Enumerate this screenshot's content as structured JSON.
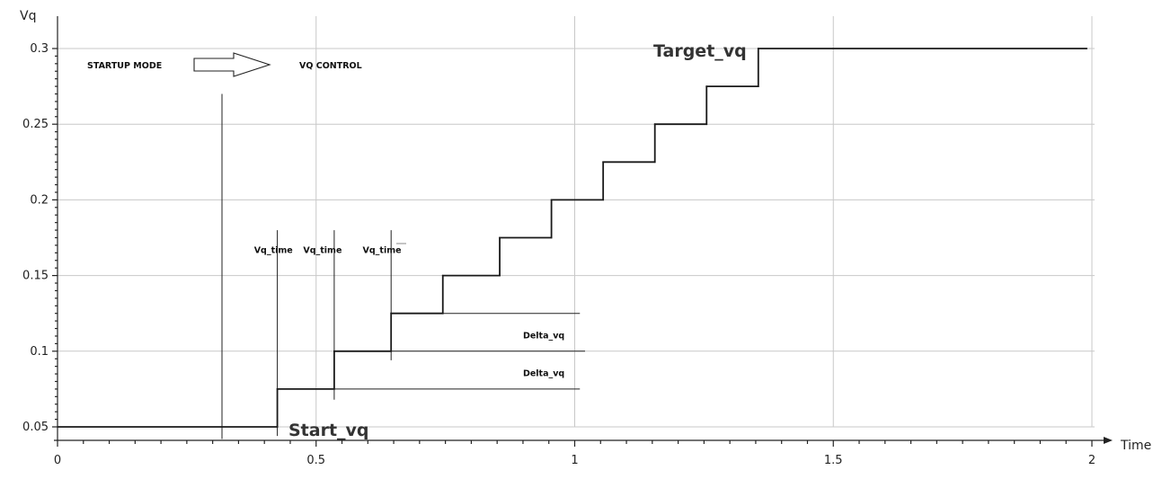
{
  "chart_data": {
    "type": "line",
    "title": "",
    "xlabel": "Time",
    "ylabel": "Vq",
    "xlim": [
      0,
      2.05
    ],
    "ylim": [
      0.045,
      0.31
    ],
    "x_ticks": [
      0,
      0.5,
      1,
      1.5,
      2
    ],
    "x_tick_labels": [
      "0",
      "0.5",
      "1",
      "1.5",
      "2"
    ],
    "y_ticks": [
      0.05,
      0.1,
      0.15,
      0.2,
      0.25,
      0.3
    ],
    "y_tick_labels": [
      "0.05",
      "0.1",
      "0.15",
      "0.2",
      "0.25",
      "0.3"
    ],
    "grid": true,
    "series": [
      {
        "x": [
          0,
          0.425,
          0.425,
          0.535,
          0.535,
          0.645,
          0.645,
          0.745,
          0.745,
          0.855,
          0.855,
          0.955,
          0.955,
          1.055,
          1.055,
          1.155,
          1.155,
          1.255,
          1.255,
          1.355,
          1.355,
          1.99
        ],
        "y": [
          0.05,
          0.05,
          0.075,
          0.075,
          0.1,
          0.1,
          0.125,
          0.125,
          0.15,
          0.15,
          0.175,
          0.175,
          0.2,
          0.2,
          0.225,
          0.225,
          0.25,
          0.25,
          0.275,
          0.275,
          0.3,
          0.3
        ]
      }
    ],
    "mode_labels": {
      "startup": "STARTUP MODE",
      "vq_control": "VQ CONTROL"
    },
    "annotations": [
      {
        "text": "Target_vq",
        "x": 1.1,
        "y": 0.3
      },
      {
        "text": "Start_vq",
        "x": 0.445,
        "y": 0.05
      },
      {
        "text": "Vq_time",
        "x": 0.38,
        "y": 0.165
      },
      {
        "text": "Vq_time",
        "x": 0.475,
        "y": 0.165
      },
      {
        "text": "Vq_time",
        "x": 0.59,
        "y": 0.165
      },
      {
        "text": "Delta_vq",
        "x": 0.9,
        "y": 0.111
      },
      {
        "text": "Delta_vq",
        "x": 0.9,
        "y": 0.086
      }
    ],
    "reference_lines": [
      {
        "orientation": "vertical",
        "x": 0.318,
        "y_from": 0.042,
        "y_to": 0.27
      },
      {
        "orientation": "vertical",
        "x": 0.425,
        "y_from": 0.044,
        "y_to": 0.18
      },
      {
        "orientation": "vertical",
        "x": 0.535,
        "y_from": 0.068,
        "y_to": 0.18
      },
      {
        "orientation": "vertical",
        "x": 0.645,
        "y_from": 0.094,
        "y_to": 0.18
      },
      {
        "orientation": "horizontal",
        "y": 0.075,
        "x_from": 0.535,
        "x_to": 1.01
      },
      {
        "orientation": "horizontal",
        "y": 0.1,
        "x_from": 0.645,
        "x_to": 1.02
      },
      {
        "orientation": "horizontal",
        "y": 0.125,
        "x_from": 0.645,
        "x_to": 1.01
      }
    ]
  }
}
